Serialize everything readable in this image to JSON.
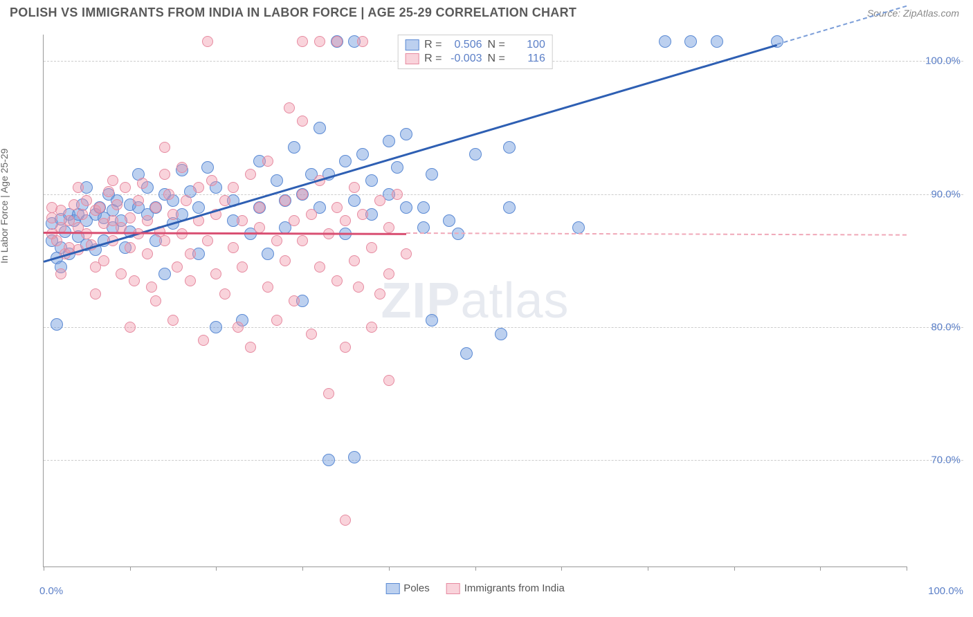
{
  "title": "POLISH VS IMMIGRANTS FROM INDIA IN LABOR FORCE | AGE 25-29 CORRELATION CHART",
  "source": "Source: ZipAtlas.com",
  "y_axis_label": "In Labor Force | Age 25-29",
  "watermark_bold": "ZIP",
  "watermark_rest": "atlas",
  "chart": {
    "type": "scatter",
    "background_color": "#ffffff",
    "grid_color": "#cccccc",
    "axis_color": "#999999",
    "xlim": [
      0,
      100
    ],
    "ylim": [
      62,
      102
    ],
    "x_ticks": [
      0,
      10,
      20,
      30,
      40,
      50,
      60,
      70,
      80,
      90,
      100
    ],
    "x_tick_labels": {
      "0": "0.0%",
      "100": "100.0%"
    },
    "y_ticks": [
      70,
      80,
      90,
      100
    ],
    "y_tick_labels": {
      "70": "70.0%",
      "80": "80.0%",
      "90": "90.0%",
      "100": "100.0%"
    },
    "tick_label_color": "#5b7fc7",
    "tick_label_fontsize": 15,
    "axis_label_color": "#666666",
    "axis_label_fontsize": 14,
    "series": [
      {
        "name": "Poles",
        "color_fill": "rgba(106,150,220,0.45)",
        "color_stroke": "#5b8ad4",
        "trend_color": "#2e5fb3",
        "trend_dash_color": "#7a9dd8",
        "marker_radius": 9,
        "R": "0.506",
        "N": "100",
        "trend": {
          "x1": 0,
          "y1": 85.0,
          "x2": 85,
          "y2": 101.3,
          "dash_to_x": 100
        },
        "points": [
          [
            1,
            87.8
          ],
          [
            1,
            86.5
          ],
          [
            1.5,
            85.2
          ],
          [
            1.5,
            80.2
          ],
          [
            2,
            88.1
          ],
          [
            2,
            86.0
          ],
          [
            2.5,
            87.2
          ],
          [
            3,
            88.5
          ],
          [
            3,
            85.5
          ],
          [
            3.5,
            88.0
          ],
          [
            4,
            88.5
          ],
          [
            4,
            86.8
          ],
          [
            4.5,
            89.2
          ],
          [
            5,
            88.0
          ],
          [
            5,
            86.2
          ],
          [
            5,
            90.5
          ],
          [
            6,
            88.5
          ],
          [
            6,
            85.8
          ],
          [
            6.5,
            89.0
          ],
          [
            7,
            88.2
          ],
          [
            7,
            86.5
          ],
          [
            7.5,
            90.0
          ],
          [
            8,
            88.8
          ],
          [
            8,
            87.5
          ],
          [
            8.5,
            89.5
          ],
          [
            9,
            88.0
          ],
          [
            9.5,
            86.0
          ],
          [
            10,
            89.2
          ],
          [
            10,
            87.2
          ],
          [
            11,
            91.5
          ],
          [
            11,
            89.0
          ],
          [
            12,
            88.5
          ],
          [
            12,
            90.5
          ],
          [
            13,
            89.0
          ],
          [
            13,
            86.5
          ],
          [
            14,
            84.0
          ],
          [
            14,
            90.0
          ],
          [
            15,
            89.5
          ],
          [
            15,
            87.8
          ],
          [
            16,
            91.8
          ],
          [
            16,
            88.5
          ],
          [
            17,
            90.2
          ],
          [
            18,
            89.0
          ],
          [
            18,
            85.5
          ],
          [
            19,
            92.0
          ],
          [
            20,
            80.0
          ],
          [
            20,
            90.5
          ],
          [
            22,
            89.5
          ],
          [
            22,
            88.0
          ],
          [
            23,
            80.5
          ],
          [
            24,
            87.0
          ],
          [
            25,
            92.5
          ],
          [
            25,
            89.0
          ],
          [
            26,
            85.5
          ],
          [
            27,
            91.0
          ],
          [
            28,
            89.5
          ],
          [
            28,
            87.5
          ],
          [
            29,
            93.5
          ],
          [
            30,
            90.0
          ],
          [
            30,
            82.0
          ],
          [
            31,
            91.5
          ],
          [
            32,
            95.0
          ],
          [
            32,
            89.0
          ],
          [
            33,
            70.0
          ],
          [
            33,
            91.5
          ],
          [
            34,
            101.5
          ],
          [
            35,
            92.5
          ],
          [
            35,
            87.0
          ],
          [
            36,
            70.2
          ],
          [
            36,
            89.5
          ],
          [
            36,
            101.5
          ],
          [
            37,
            93.0
          ],
          [
            38,
            91.0
          ],
          [
            38,
            88.5
          ],
          [
            40,
            94.0
          ],
          [
            40,
            90.0
          ],
          [
            41,
            92.0
          ],
          [
            42,
            89.0
          ],
          [
            42,
            94.5
          ],
          [
            43,
            101.5
          ],
          [
            44,
            87.5
          ],
          [
            44,
            89.0
          ],
          [
            45,
            80.5
          ],
          [
            45,
            91.5
          ],
          [
            46,
            101.5
          ],
          [
            47,
            88.0
          ],
          [
            48,
            87.0
          ],
          [
            49,
            78.0
          ],
          [
            50,
            93.0
          ],
          [
            52,
            101.5
          ],
          [
            53,
            79.5
          ],
          [
            54,
            89.0
          ],
          [
            54,
            93.5
          ],
          [
            58,
            101.5
          ],
          [
            62,
            87.5
          ],
          [
            72,
            101.5
          ],
          [
            75,
            101.5
          ],
          [
            78,
            101.5
          ],
          [
            85,
            101.5
          ],
          [
            2,
            84.5
          ]
        ]
      },
      {
        "name": "Immigrants from India",
        "color_fill": "rgba(240,150,170,0.42)",
        "color_stroke": "#e68aa0",
        "trend_color": "#d94f72",
        "trend_dash_color": "#f0a8b8",
        "marker_radius": 8,
        "R": "-0.003",
        "N": "116",
        "trend": {
          "x1": 0,
          "y1": 87.2,
          "x2": 42,
          "y2": 87.1,
          "dash_to_x": 100
        },
        "points": [
          [
            1,
            87.0
          ],
          [
            1,
            88.2
          ],
          [
            1.5,
            86.5
          ],
          [
            2,
            87.5
          ],
          [
            2,
            88.8
          ],
          [
            2.5,
            85.5
          ],
          [
            3,
            88.0
          ],
          [
            3,
            86.0
          ],
          [
            3.5,
            89.2
          ],
          [
            4,
            87.5
          ],
          [
            4,
            85.8
          ],
          [
            4.5,
            88.5
          ],
          [
            5,
            89.5
          ],
          [
            5,
            87.0
          ],
          [
            5.5,
            86.2
          ],
          [
            6,
            88.8
          ],
          [
            6,
            84.5
          ],
          [
            6.5,
            89.0
          ],
          [
            7,
            87.8
          ],
          [
            7,
            85.0
          ],
          [
            7.5,
            90.2
          ],
          [
            8,
            88.0
          ],
          [
            8,
            86.5
          ],
          [
            8.5,
            89.2
          ],
          [
            9,
            84.0
          ],
          [
            9,
            87.5
          ],
          [
            9.5,
            90.5
          ],
          [
            10,
            88.2
          ],
          [
            10,
            86.0
          ],
          [
            10.5,
            83.5
          ],
          [
            11,
            89.5
          ],
          [
            11,
            87.0
          ],
          [
            11.5,
            90.8
          ],
          [
            12,
            85.5
          ],
          [
            12,
            88.0
          ],
          [
            12.5,
            83.0
          ],
          [
            13,
            89.0
          ],
          [
            13,
            82.0
          ],
          [
            13.5,
            87.2
          ],
          [
            14,
            93.5
          ],
          [
            14,
            86.5
          ],
          [
            14.5,
            90.0
          ],
          [
            15,
            88.5
          ],
          [
            15,
            80.5
          ],
          [
            15.5,
            84.5
          ],
          [
            16,
            92.0
          ],
          [
            16,
            87.0
          ],
          [
            16.5,
            89.5
          ],
          [
            17,
            85.5
          ],
          [
            17,
            83.5
          ],
          [
            18,
            90.5
          ],
          [
            18,
            88.0
          ],
          [
            18.5,
            79.0
          ],
          [
            19,
            101.5
          ],
          [
            19,
            86.5
          ],
          [
            19.5,
            91.0
          ],
          [
            20,
            84.0
          ],
          [
            20,
            88.5
          ],
          [
            21,
            82.5
          ],
          [
            21,
            89.5
          ],
          [
            22,
            86.0
          ],
          [
            22,
            90.5
          ],
          [
            22.5,
            80.0
          ],
          [
            23,
            88.0
          ],
          [
            23,
            84.5
          ],
          [
            24,
            91.5
          ],
          [
            24,
            78.5
          ],
          [
            25,
            87.5
          ],
          [
            25,
            89.0
          ],
          [
            26,
            83.0
          ],
          [
            26,
            92.5
          ],
          [
            27,
            86.5
          ],
          [
            27,
            80.5
          ],
          [
            28,
            89.5
          ],
          [
            28,
            85.0
          ],
          [
            28.5,
            96.5
          ],
          [
            29,
            88.0
          ],
          [
            29,
            82.0
          ],
          [
            30,
            90.0
          ],
          [
            30,
            95.5
          ],
          [
            30,
            86.5
          ],
          [
            30,
            101.5
          ],
          [
            31,
            79.5
          ],
          [
            31,
            88.5
          ],
          [
            32,
            84.5
          ],
          [
            32,
            91.0
          ],
          [
            32,
            101.5
          ],
          [
            33,
            87.0
          ],
          [
            33,
            75.0
          ],
          [
            34,
            89.0
          ],
          [
            34,
            83.5
          ],
          [
            34,
            101.5
          ],
          [
            35,
            88.0
          ],
          [
            35,
            78.5
          ],
          [
            35,
            65.5
          ],
          [
            36,
            90.5
          ],
          [
            36,
            85.0
          ],
          [
            36.5,
            83.0
          ],
          [
            37,
            101.5
          ],
          [
            37,
            88.5
          ],
          [
            38,
            80.0
          ],
          [
            38,
            86.0
          ],
          [
            39,
            89.5
          ],
          [
            39,
            82.5
          ],
          [
            40,
            87.5
          ],
          [
            40,
            84.0
          ],
          [
            40,
            76.0
          ],
          [
            41,
            90.0
          ],
          [
            42,
            85.5
          ],
          [
            1,
            89.0
          ],
          [
            2,
            84.0
          ],
          [
            4,
            90.5
          ],
          [
            6,
            82.5
          ],
          [
            8,
            91.0
          ],
          [
            10,
            80.0
          ],
          [
            14,
            91.5
          ]
        ]
      }
    ]
  },
  "legend_top_labels": {
    "R": "R =",
    "N": "N ="
  },
  "legend_bottom": [
    {
      "label": "Poles",
      "fill": "rgba(106,150,220,0.45)",
      "stroke": "#5b8ad4"
    },
    {
      "label": "Immigrants from India",
      "fill": "rgba(240,150,170,0.42)",
      "stroke": "#e68aa0"
    }
  ]
}
